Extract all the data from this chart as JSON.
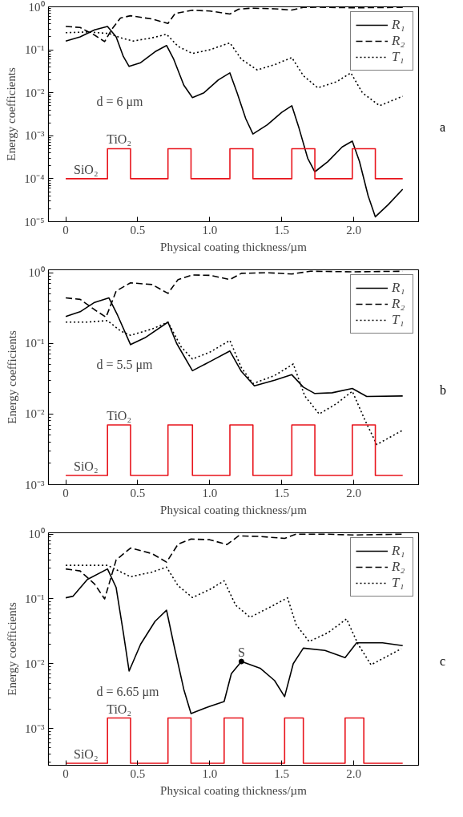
{
  "chart_data": [
    {
      "type": "line",
      "xlabel": "Physical coating thickness/µm",
      "ylabel": "Energy coefficients",
      "log": "y",
      "grid": false,
      "legend": "top right",
      "xlim": [
        -0.12,
        2.45
      ],
      "ylim": [
        1e-05,
        1
      ],
      "xticks": [
        0,
        {
          "value": 0.5,
          "label": "0.5"
        },
        {
          "value": 1,
          "label": "1.0"
        },
        {
          "value": 1.5,
          "label": "1.5"
        },
        {
          "value": 2,
          "label": "2.0"
        }
      ],
      "yticks": [
        {
          "value": 1e-05,
          "label": "10⁻⁵"
        },
        {
          "value": 0.0001,
          "label": "10⁻⁴"
        },
        {
          "value": 0.001,
          "label": "10⁻³"
        },
        {
          "value": 0.01,
          "label": "10⁻²"
        },
        {
          "value": 0.1,
          "label": "10⁻¹"
        },
        {
          "value": 1,
          "label": "10⁰"
        }
      ],
      "series": [
        {
          "name": "R₁",
          "color": "#000000",
          "line_style": "solid",
          "x": [
            0,
            0.1,
            0.2,
            0.29,
            0.35,
            0.4,
            0.44,
            0.52,
            0.62,
            0.7,
            0.75,
            0.82,
            0.88,
            0.96,
            1.06,
            1.14,
            1.19,
            1.25,
            1.3,
            1.4,
            1.5,
            1.57,
            1.62,
            1.68,
            1.73,
            1.82,
            1.92,
            1.99,
            2.04,
            2.1,
            2.15,
            2.24,
            2.34
          ],
          "values": [
            0.16,
            0.2,
            0.29,
            0.35,
            0.2,
            0.07,
            0.041,
            0.05,
            0.09,
            0.126,
            0.06,
            0.015,
            0.0077,
            0.01,
            0.02,
            0.029,
            0.01,
            0.0025,
            0.0011,
            0.0018,
            0.0035,
            0.005,
            0.0015,
            0.0003,
            0.000145,
            0.00025,
            0.00055,
            0.00075,
            0.00025,
            4e-05,
            1.3e-05,
            2.5e-05,
            5.7e-05
          ]
        },
        {
          "name": "R₂",
          "color": "#000000",
          "line_style": "dashed",
          "x": [
            0,
            0.1,
            0.2,
            0.27,
            0.32,
            0.38,
            0.45,
            0.6,
            0.71,
            0.76,
            0.88,
            1.0,
            1.14,
            1.2,
            1.29,
            1.45,
            1.57,
            1.65,
            1.75,
            2.0,
            2.34
          ],
          "values": [
            0.35,
            0.33,
            0.22,
            0.155,
            0.3,
            0.55,
            0.62,
            0.52,
            0.41,
            0.7,
            0.83,
            0.8,
            0.68,
            0.88,
            0.93,
            0.9,
            0.84,
            0.97,
            0.98,
            0.95,
            0.97
          ]
        },
        {
          "name": "T₁",
          "color": "#000000",
          "line_style": "dotted",
          "x": [
            0,
            0.15,
            0.3,
            0.38,
            0.47,
            0.6,
            0.7,
            0.78,
            0.88,
            1.0,
            1.14,
            1.22,
            1.33,
            1.45,
            1.57,
            1.65,
            1.75,
            1.88,
            1.98,
            2.06,
            2.18,
            2.34
          ],
          "values": [
            0.25,
            0.26,
            0.24,
            0.19,
            0.16,
            0.19,
            0.23,
            0.12,
            0.082,
            0.1,
            0.145,
            0.06,
            0.034,
            0.045,
            0.066,
            0.025,
            0.013,
            0.018,
            0.029,
            0.01,
            0.005,
            0.0083
          ]
        },
        {
          "type": "step",
          "color": "#e8141c",
          "line_style": "solid",
          "x": [
            0,
            0.29,
            0.45,
            0.71,
            0.87,
            1.14,
            1.3,
            1.57,
            1.73,
            1.99,
            2.15,
            2.34
          ],
          "values": [
            0.0001,
            0.0005,
            0.0001,
            0.0005,
            0.0001,
            0.0005,
            0.0001,
            0.0005,
            0.0001,
            0.0005,
            0.0001,
            0.0001
          ]
        }
      ],
      "annotations": [
        "d = 6 μm",
        "a",
        {
          "text": "TiO₂",
          "x": 0.37,
          "y": 0.0005
        },
        {
          "text": "SiO₂",
          "x": 0.14,
          "y": 0.0001
        }
      ]
    },
    {
      "type": "line",
      "xlabel": "Physical coating thickness/µm",
      "ylabel": "Energy coefficients",
      "log": "y",
      "grid": false,
      "legend": "top right",
      "xlim": [
        -0.12,
        2.45
      ],
      "ylim": [
        0.001,
        1.1
      ],
      "xticks": [
        0,
        {
          "value": 0.5,
          "label": "0.5"
        },
        {
          "value": 1,
          "label": "1.0"
        },
        {
          "value": 1.5,
          "label": "1.5"
        },
        {
          "value": 2,
          "label": "2.0"
        }
      ],
      "yticks": [
        {
          "value": 0.001,
          "label": "10⁻³"
        },
        {
          "value": 0.01,
          "label": "10⁻²"
        },
        {
          "value": 0.1,
          "label": "10⁻¹"
        },
        {
          "value": 1,
          "label": "10⁰"
        }
      ],
      "series": [
        {
          "name": "R₁",
          "color": "#000000",
          "line_style": "solid",
          "x": [
            0,
            0.1,
            0.2,
            0.3,
            0.36,
            0.45,
            0.55,
            0.71,
            0.77,
            0.88,
            1.0,
            1.14,
            1.22,
            1.31,
            1.45,
            1.57,
            1.65,
            1.73,
            1.85,
            1.99,
            2.09,
            2.34
          ],
          "values": [
            0.24,
            0.28,
            0.38,
            0.44,
            0.25,
            0.096,
            0.12,
            0.2,
            0.1,
            0.041,
            0.055,
            0.078,
            0.04,
            0.025,
            0.03,
            0.036,
            0.024,
            0.0195,
            0.02,
            0.023,
            0.0177,
            0.018
          ]
        },
        {
          "name": "R₂",
          "color": "#000000",
          "line_style": "dashed",
          "x": [
            0,
            0.1,
            0.2,
            0.28,
            0.35,
            0.45,
            0.6,
            0.71,
            0.78,
            0.88,
            1.0,
            1.14,
            1.22,
            1.4,
            1.57,
            1.7,
            2.0,
            2.34
          ],
          "values": [
            0.44,
            0.42,
            0.3,
            0.235,
            0.55,
            0.72,
            0.68,
            0.51,
            0.8,
            0.93,
            0.92,
            0.8,
            0.98,
            1.0,
            0.96,
            1.05,
            1.03,
            1.05
          ]
        },
        {
          "name": "T₁",
          "color": "#000000",
          "line_style": "dotted",
          "x": [
            0,
            0.15,
            0.29,
            0.38,
            0.45,
            0.6,
            0.71,
            0.8,
            0.88,
            1.0,
            1.14,
            1.22,
            1.3,
            1.45,
            1.58,
            1.66,
            1.76,
            1.88,
            1.99,
            2.08,
            2.16,
            2.34
          ],
          "values": [
            0.2,
            0.2,
            0.21,
            0.15,
            0.13,
            0.16,
            0.2,
            0.09,
            0.06,
            0.075,
            0.11,
            0.045,
            0.027,
            0.035,
            0.051,
            0.018,
            0.01,
            0.014,
            0.021,
            0.008,
            0.0037,
            0.0059
          ]
        },
        {
          "type": "step",
          "color": "#e8141c",
          "line_style": "solid",
          "x": [
            0,
            0.29,
            0.45,
            0.71,
            0.88,
            1.14,
            1.3,
            1.57,
            1.73,
            1.99,
            2.15,
            2.34
          ],
          "values": [
            0.00135,
            0.007,
            0.00135,
            0.007,
            0.00135,
            0.007,
            0.00135,
            0.007,
            0.00135,
            0.007,
            0.00135,
            0.00135
          ]
        }
      ],
      "annotations": [
        "d = 5.5 μm",
        "b",
        {
          "text": "TiO₂",
          "x": 0.37,
          "y": 0.007
        },
        {
          "text": "SiO₂",
          "x": 0.14,
          "y": 0.00135
        }
      ]
    },
    {
      "type": "line",
      "xlabel": "Physical coating thickness/µm",
      "ylabel": "Energy coefficients",
      "log": "y",
      "grid": false,
      "legend": "top right",
      "xlim": [
        -0.12,
        2.45
      ],
      "ylim": [
        0.00027,
        1.05
      ],
      "xticks": [
        0,
        {
          "value": 0.5,
          "label": "0.5"
        },
        {
          "value": 1,
          "label": "1.0"
        },
        {
          "value": 1.5,
          "label": "1.5"
        },
        {
          "value": 2,
          "label": "2.0"
        }
      ],
      "yticks": [
        {
          "value": 0.001,
          "label": "10⁻³"
        },
        {
          "value": 0.01,
          "label": "10⁻²"
        },
        {
          "value": 0.1,
          "label": "10⁻¹"
        },
        {
          "value": 1,
          "label": "10⁰"
        }
      ],
      "series": [
        {
          "name": "R₁",
          "color": "#000000",
          "line_style": "solid",
          "x": [
            0,
            0.05,
            0.15,
            0.29,
            0.35,
            0.4,
            0.44,
            0.52,
            0.62,
            0.7,
            0.75,
            0.82,
            0.87,
            1.0,
            1.1,
            1.15,
            1.22,
            1.35,
            1.45,
            1.52,
            1.58,
            1.65,
            1.8,
            1.94,
            2.02,
            2.2,
            2.34
          ],
          "values": [
            0.104,
            0.11,
            0.2,
            0.29,
            0.15,
            0.03,
            0.0077,
            0.02,
            0.045,
            0.067,
            0.02,
            0.004,
            0.0017,
            0.0022,
            0.0026,
            0.007,
            0.0108,
            0.0085,
            0.0055,
            0.0031,
            0.01,
            0.0174,
            0.016,
            0.0124,
            0.021,
            0.021,
            0.019
          ]
        },
        {
          "name": "R₂",
          "color": "#000000",
          "line_style": "dashed",
          "x": [
            0,
            0.1,
            0.2,
            0.27,
            0.35,
            0.45,
            0.6,
            0.7,
            0.78,
            0.87,
            1.0,
            1.12,
            1.2,
            1.35,
            1.52,
            1.6,
            1.8,
            2.0,
            2.34
          ],
          "values": [
            0.29,
            0.27,
            0.17,
            0.1,
            0.4,
            0.61,
            0.5,
            0.37,
            0.7,
            0.84,
            0.82,
            0.69,
            0.94,
            0.92,
            0.86,
            1.0,
            1.0,
            0.97,
            1.0
          ]
        },
        {
          "name": "T₁",
          "color": "#000000",
          "line_style": "dotted",
          "x": [
            0,
            0.15,
            0.29,
            0.45,
            0.6,
            0.7,
            0.78,
            0.88,
            1.0,
            1.1,
            1.18,
            1.28,
            1.42,
            1.54,
            1.6,
            1.69,
            1.82,
            1.95,
            2.03,
            2.12,
            2.33
          ],
          "values": [
            0.33,
            0.33,
            0.33,
            0.22,
            0.26,
            0.31,
            0.16,
            0.105,
            0.14,
            0.19,
            0.08,
            0.052,
            0.075,
            0.104,
            0.04,
            0.022,
            0.03,
            0.049,
            0.02,
            0.0096,
            0.017
          ]
        },
        {
          "type": "step",
          "color": "#e8141c",
          "line_style": "solid",
          "x": [
            0,
            0.29,
            0.45,
            0.71,
            0.87,
            1.1,
            1.23,
            1.52,
            1.65,
            1.94,
            2.07,
            2.34
          ],
          "values": [
            0.00029,
            0.00145,
            0.00029,
            0.00145,
            0.00029,
            0.00145,
            0.00029,
            0.00145,
            0.00029,
            0.00145,
            0.00029,
            0.00029
          ]
        },
        {
          "type": "scatter",
          "color": "#000000",
          "marker": "circle",
          "x": [
            1.22
          ],
          "values": [
            0.0108
          ]
        }
      ],
      "annotations": [
        "d = 6.65 μm",
        "c",
        {
          "text": "TiO₂",
          "x": 0.37,
          "y": 0.00145
        },
        {
          "text": "SiO₂",
          "x": 0.14,
          "y": 0.00029
        },
        {
          "text": "S",
          "x": 1.22,
          "y": 0.0108
        }
      ]
    }
  ]
}
